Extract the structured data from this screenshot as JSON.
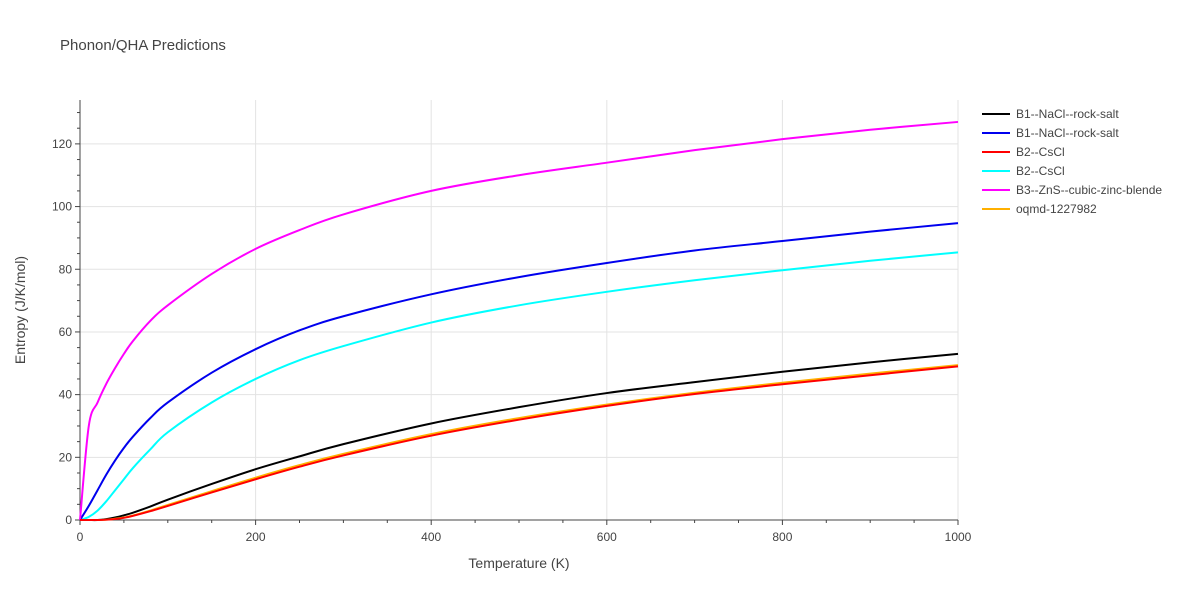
{
  "chart_data": {
    "type": "line",
    "title": "Phonon/QHA Predictions",
    "xlabel": "Temperature (K)",
    "ylabel": "Entropy (J/K/mol)",
    "xlim": [
      0,
      1000
    ],
    "ylim": [
      0,
      134
    ],
    "xticks": [
      0,
      200,
      400,
      600,
      800,
      1000
    ],
    "yticks": [
      0,
      20,
      40,
      60,
      80,
      100,
      120
    ],
    "grid": true,
    "legend_position": "right",
    "x": [
      0,
      10,
      20,
      30,
      40,
      50,
      60,
      80,
      100,
      150,
      200,
      250,
      300,
      400,
      500,
      600,
      700,
      800,
      900,
      1000
    ],
    "series": [
      {
        "name": "B1--NaCl--rock-salt",
        "color": "#000000",
        "values": [
          0,
          0,
          0,
          0.3,
          0.8,
          1.5,
          2.3,
          4.3,
          6.5,
          11.5,
          16.2,
          20.3,
          24.2,
          30.8,
          36.0,
          40.5,
          44.0,
          47.3,
          50.3,
          53.0
        ]
      },
      {
        "name": "B1--NaCl--rock-salt",
        "color": "#0000ee",
        "values": [
          0,
          4.5,
          9.5,
          14.5,
          19.0,
          23.0,
          26.5,
          32.5,
          37.5,
          47.0,
          54.5,
          60.5,
          65.0,
          72.0,
          77.5,
          82.0,
          86.0,
          89.0,
          92.0,
          94.7
        ]
      },
      {
        "name": "B2--CsCl",
        "color": "#ff0000",
        "values": [
          0,
          0,
          0,
          0.1,
          0.3,
          0.7,
          1.3,
          2.8,
          4.5,
          8.8,
          13.0,
          17.0,
          20.6,
          26.9,
          32.0,
          36.4,
          40.2,
          43.3,
          46.2,
          49.0
        ]
      },
      {
        "name": "B2--CsCl",
        "color": "#00ffff",
        "values": [
          0,
          1.0,
          3.0,
          6.0,
          9.5,
          13.0,
          16.5,
          22.5,
          28.0,
          37.5,
          45.0,
          51.0,
          55.5,
          63.0,
          68.5,
          72.8,
          76.5,
          79.7,
          82.7,
          85.4
        ]
      },
      {
        "name": "B3--ZnS--cubic-zinc-blende",
        "color": "#ff00ff",
        "values": [
          0,
          30.0,
          37.5,
          43.5,
          48.5,
          53.0,
          57.0,
          63.5,
          68.5,
          78.5,
          86.5,
          92.5,
          97.5,
          105.0,
          110.0,
          114.0,
          118.0,
          121.5,
          124.5,
          127.0
        ]
      },
      {
        "name": "oqmd-1227982",
        "color": "#ffb000",
        "values": [
          0,
          0,
          0,
          0.1,
          0.4,
          0.8,
          1.4,
          3.0,
          4.8,
          9.2,
          13.5,
          17.5,
          21.1,
          27.4,
          32.5,
          36.8,
          40.6,
          43.8,
          46.7,
          49.4
        ]
      }
    ]
  }
}
